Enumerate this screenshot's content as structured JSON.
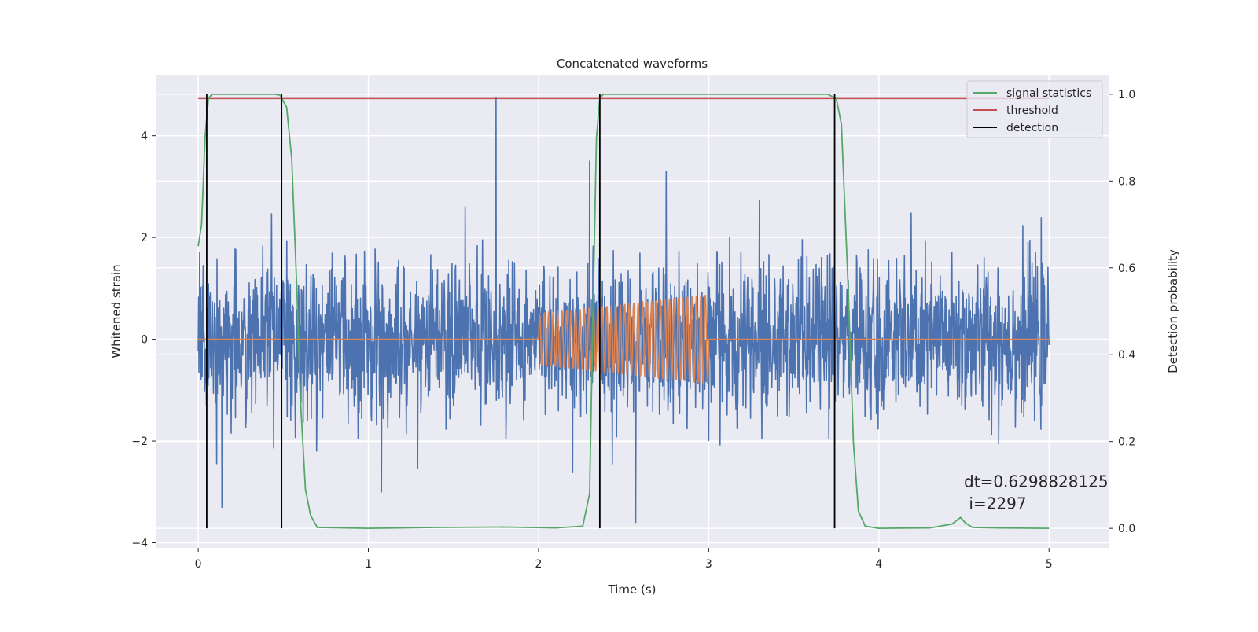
{
  "chart_data": {
    "type": "line",
    "title": "Concatenated waveforms",
    "xlabel": "Time (s)",
    "ylabel": "Whitened strain",
    "y2label": "Detection probability",
    "xlim": [
      -0.25,
      5.35
    ],
    "ylim": [
      -4.1,
      5.2
    ],
    "y2lim": [
      -0.045,
      1.045
    ],
    "x_ticks": [
      0,
      1,
      2,
      3,
      4,
      5
    ],
    "y_ticks": [
      -4,
      -2,
      0,
      2,
      4
    ],
    "y2_ticks": [
      0.0,
      0.2,
      0.4,
      0.6,
      0.8,
      1.0
    ],
    "x_tick_labels": [
      "0",
      "1",
      "2",
      "3",
      "4",
      "5"
    ],
    "y_tick_labels": [
      "−4",
      "−2",
      "0",
      "2",
      "4"
    ],
    "y2_tick_labels": [
      "0.0",
      "0.2",
      "0.4",
      "0.6",
      "0.8",
      "1.0"
    ],
    "grid": true,
    "legend_position": "top-right",
    "legend": [
      "signal statistics",
      "threshold",
      "detection"
    ],
    "annotation": {
      "line1": "dt=0.6298828125",
      "line2": " i=2297",
      "x": 4.5,
      "y": -2.9
    },
    "series": [
      {
        "name": "whitened strain (noise)",
        "color": "#4c72b0",
        "axis": "left",
        "x_range": [
          0,
          5
        ],
        "amplitude_rms": 0.75,
        "notable_peaks": [
          {
            "x": 1.75,
            "y": 4.75
          },
          {
            "x": 2.57,
            "y": -3.6
          },
          {
            "x": 0.14,
            "y": -3.3
          },
          {
            "x": 2.3,
            "y": 3.5
          },
          {
            "x": 2.75,
            "y": 3.3
          }
        ]
      },
      {
        "name": "injected waveform",
        "color": "#dd8452",
        "axis": "left",
        "x_range": [
          0,
          5
        ],
        "chirp_start": 2.0,
        "chirp_end": 3.0,
        "amp_start": 0.5,
        "amp_end": 0.88,
        "cycles": 38
      },
      {
        "name": "signal statistics",
        "color": "#55a868",
        "axis": "right",
        "x": [
          0.0,
          0.02,
          0.04,
          0.06,
          0.08,
          0.1,
          0.2,
          0.35,
          0.45,
          0.48,
          0.52,
          0.55,
          0.58,
          0.6,
          0.63,
          0.66,
          0.7,
          1.0,
          1.4,
          1.8,
          2.1,
          2.26,
          2.3,
          2.32,
          2.34,
          2.36,
          2.38,
          2.42,
          2.6,
          3.0,
          3.4,
          3.7,
          3.75,
          3.78,
          3.82,
          3.85,
          3.88,
          3.92,
          4.0,
          4.3,
          4.43,
          4.48,
          4.51,
          4.55,
          4.7,
          5.0
        ],
        "values": [
          0.65,
          0.7,
          0.9,
          0.99,
          1.0,
          1.0,
          1.0,
          1.0,
          1.0,
          0.998,
          0.97,
          0.85,
          0.55,
          0.3,
          0.09,
          0.03,
          0.002,
          0.0,
          0.002,
          0.003,
          0.001,
          0.005,
          0.08,
          0.5,
          0.9,
          0.99,
          1.0,
          1.0,
          1.0,
          1.0,
          1.0,
          1.0,
          0.99,
          0.93,
          0.55,
          0.2,
          0.04,
          0.005,
          0.0,
          0.001,
          0.01,
          0.025,
          0.012,
          0.002,
          0.001,
          0.0
        ]
      },
      {
        "name": "threshold",
        "color": "#c44e52",
        "axis": "right",
        "x": [
          0,
          5
        ],
        "values": [
          0.99,
          0.99
        ]
      },
      {
        "name": "detection",
        "color": "#000000",
        "axis": "right",
        "type": "vlines",
        "x": [
          0.05,
          0.49,
          2.36,
          3.74
        ],
        "range": [
          0.0,
          1.0
        ]
      }
    ]
  }
}
